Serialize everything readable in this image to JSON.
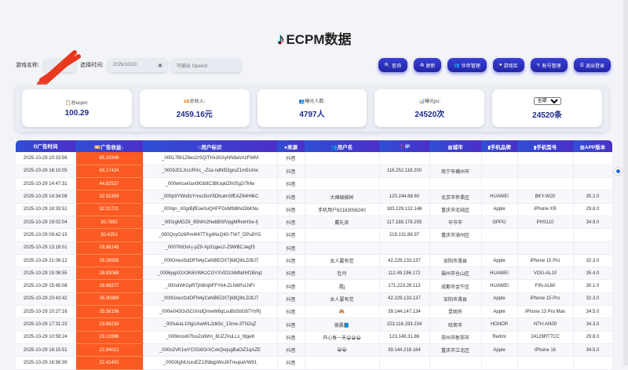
{
  "header": {
    "logo": "♪",
    "title": "ECPM数据"
  },
  "filters": {
    "game_label": "游戏名称:",
    "time_label": "选择时间:",
    "date": "2025/10/29",
    "openid_placeholder": "可输出 Openid"
  },
  "buttons": [
    "查询",
    "更新",
    "伙伴管理",
    "游戏库",
    "账号管理",
    "退出登录"
  ],
  "button_icons": [
    "🔍",
    "♻",
    "👥",
    "●",
    "✎",
    "☰"
  ],
  "stats": [
    {
      "icon": "📋",
      "label": "总ecpm:",
      "value": "100.29"
    },
    {
      "icon": "💴",
      "label": "总收入:",
      "value": "2459.16元"
    },
    {
      "icon": "👥",
      "label": "曝光人数:",
      "value": "4797人"
    },
    {
      "icon": "📊",
      "label": "曝光pv:",
      "value": "24520次"
    },
    {
      "select": "全部",
      "value": "24520条"
    }
  ],
  "table": {
    "headers": [
      "⏲广告时间",
      "💴广告收益↓",
      "□用户标识",
      "●来源",
      "👥用户名",
      "❗IP",
      "▦城市",
      "▮手机品牌",
      "▮手机型号",
      "▦APP版本"
    ],
    "rows": [
      [
        "2025-10-29 10:33:56",
        "85.29346",
        "_000L7Bt1Z6es2rSQlTHx1KAyNN8aVnzFWM",
        "抖音",
        "",
        "",
        "",
        "",
        "",
        ""
      ],
      [
        "2025-10-29 16:10:05",
        "63.17424",
        "_0009JCLXcURXc_-Zza-ndNl53gruZ1m5Umx",
        "抖音",
        "",
        "116.252.118.200",
        "南宁市横州市",
        "",
        "",
        ""
      ],
      [
        "2025-10-29 14:47:31",
        "44.92527",
        "_000whcw0anI9Gb9C3BUqkIZh0Sg2i7Mw",
        "抖音",
        "",
        "",
        "",
        "",
        "",
        ""
      ],
      [
        "2025-10-29 14:34:08",
        "32.51359",
        "_000p9YWo9zYmsc5oV5DhuimSfEAZ64HllkC",
        "抖音",
        "大辣椒椒树",
        "120.244.68.60",
        "北京市怀柔区",
        "HUAWEI",
        "BKY-W20",
        "35.2.0"
      ],
      [
        "2025-10-29 18:33:51",
        "32.21721",
        "_000qn_X0grBjfEoe0uQHFFDxMtbBhcDbKNu",
        "抖音",
        "手机用户62163056240",
        "183.229.132.146",
        "重庆市北碚区",
        "Apple",
        "iPhone XR",
        "29.8.0"
      ],
      [
        "2025-10-29 19:02:04",
        "30.7892",
        "_000zgMGZ6_95hfm2NebBSfVpgMRreHSe-fj",
        "抖音",
        "戴礼奈",
        "117.188.178.255",
        "毕节市",
        "OPPO",
        "PHS110",
        "34.9.0"
      ],
      [
        "2025-10-29 09:42:15",
        "30.4251",
        "_000QxyOz6Pm4f47TXg4NsQ40-TW7_DPu8YG",
        "抖音",
        "",
        "219.131.86.97",
        "重庆市渝州区",
        "",
        "",
        ""
      ],
      [
        "2025-10-29 13:16:01",
        "29.88145",
        "_0007K63vl-j-pZ9-Xp31gec2-Z9WBCJegf3",
        "抖音",
        "",
        "",
        "",
        "",
        "",
        ""
      ],
      [
        "2025-10-29 21:08:12",
        "29.26558",
        "_000GnesfzdOFN4yCeNBEOXTj68QihLD3tJ7",
        "抖音",
        "女人要有范",
        "42.229.133.137",
        "安阳市滑县",
        "Apple",
        "iPhone 15 Pro",
        "32.3.0"
      ],
      [
        "2025-10-29 15:08:55",
        "28.83068",
        "_0006pgXGX3K6VWKzCGYXVtD1NMNdHf1Bmjz",
        "抖音",
        "牡丹",
        "112.49.196.172",
        "福州市仓山区",
        "HUAWEI",
        "VOG-AL10",
        "35.4.0"
      ],
      [
        "2025-10-29 15:45:08",
        "26.68377",
        "_000oIWrGpRTjh8InjbFFYb4-ZLN6PsLNFr",
        "抖音",
        "霞j",
        "171.223.28.113",
        "成都市金牛区",
        "HUAWEI",
        "FIN-AL60",
        "30.1.0"
      ],
      [
        "2025-10-29 20:43:42",
        "26.00969",
        "_000GnesfzdOFN4yCeNBEOXTj68QihLD3tJ7",
        "抖音",
        "女人要有范",
        "42.229.133.137",
        "安阳市滑县",
        "Apple",
        "iPhone 15 Pro",
        "32.3.0"
      ],
      [
        "2025-10-29 10:27:16",
        "25.58156",
        "_000w043Gv5CiXndQmwW6qLsuBx5bG87YnRj",
        "抖音",
        "🙈",
        "39.144.147.134",
        "昆明市",
        "Apple",
        "iPhone 13 Pro Max",
        "34.5.0"
      ],
      [
        "2025-10-29 17:31:23",
        "23.86234",
        "_000ukaL10lgUAwWLJzlk5c_1Snw-3TN2qZ",
        "抖音",
        "夜晨📘",
        "223.116.193.234",
        "哈密市",
        "HONOR",
        "NTH-AN00",
        "34.3.0"
      ],
      [
        "2025-10-29 10:59:24",
        "23.12696",
        "_000knox67fooZoiWm_8UZJVuLLx_t8ge6",
        "抖音",
        "开心每一天😀😀😀",
        "123.149.31.86",
        "郑州市新郑市",
        "Redmi",
        "24129RT7CC",
        "29.8.0"
      ],
      [
        "2025-10-29 16:15:51",
        "22.84012",
        "_000o2VK1wYC0G6GrXCxkQvqsgBaOiZ1qAZE",
        "抖音",
        "😀😀",
        "39.144.218.164",
        "重庆市江北区",
        "Apple",
        "iPhone 16",
        "34.5.0"
      ],
      [
        "2025-10-29 16:56:39",
        "22.41402",
        "_000i3lgNUsxuEZJJNbqpWoJ6TreupaVW91",
        "抖音",
        "",
        "",
        "",
        "",
        "",
        ""
      ]
    ]
  },
  "colors": {
    "accent": "#2f4fd6",
    "revenue_bg": "#fb5a22",
    "stat_value": "#1e2a8a"
  }
}
